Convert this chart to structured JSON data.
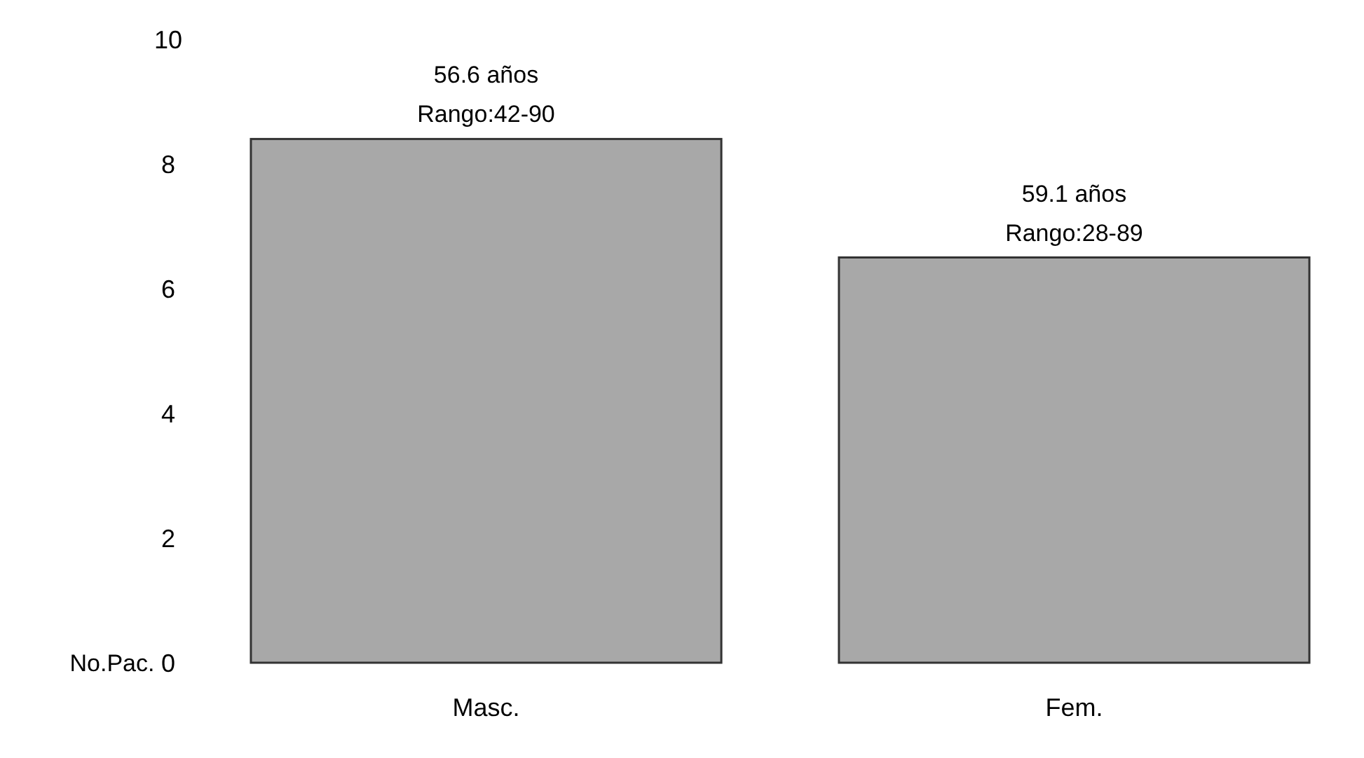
{
  "chart_data": {
    "type": "bar",
    "ylabel": "No.Pac.",
    "categories": [
      "Masc.",
      "Fem."
    ],
    "values": [
      8.4,
      6.5
    ],
    "color": "#a8a8a8",
    "ylim": [
      0,
      10
    ],
    "yticks": [
      0,
      2,
      4,
      6,
      8,
      10
    ],
    "grid": false,
    "annotations": [
      {
        "text": "56.6 años",
        "x": "Masc.",
        "y": 8.4
      },
      {
        "text": "Rango:42-90",
        "x": "Masc.",
        "y": 8.4
      },
      {
        "text": "59.1 años",
        "x": "Fem.",
        "y": 6.5
      },
      {
        "text": "Rango:28-89",
        "x": "Fem.",
        "y": 6.5
      }
    ]
  }
}
